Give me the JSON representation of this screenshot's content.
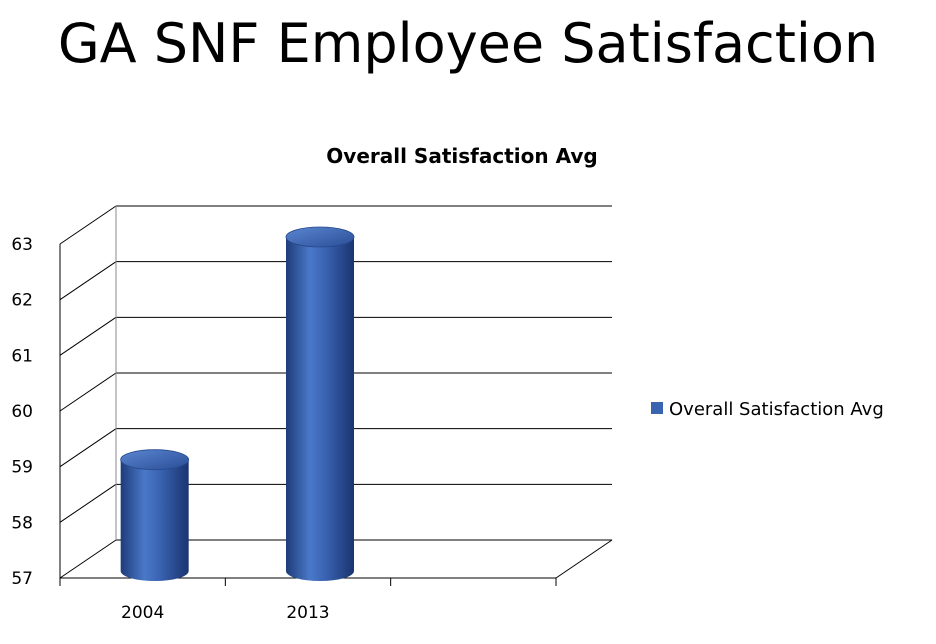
{
  "slide": {
    "title": "GA SNF Employee Satisfaction"
  },
  "chart_data": {
    "type": "bar",
    "style": "3d-cylinder",
    "title": "Overall Satisfaction Avg",
    "xlabel": "",
    "ylabel": "",
    "categories": [
      "2004",
      "2013"
    ],
    "series": [
      {
        "name": "Overall Satisfaction Avg",
        "values": [
          59,
          63
        ],
        "color": "#3B64B0"
      }
    ],
    "ylim": [
      57,
      63
    ],
    "yticks": [
      "57",
      "58",
      "59",
      "60",
      "61",
      "62",
      "63"
    ],
    "grid": true,
    "legend": "right"
  }
}
